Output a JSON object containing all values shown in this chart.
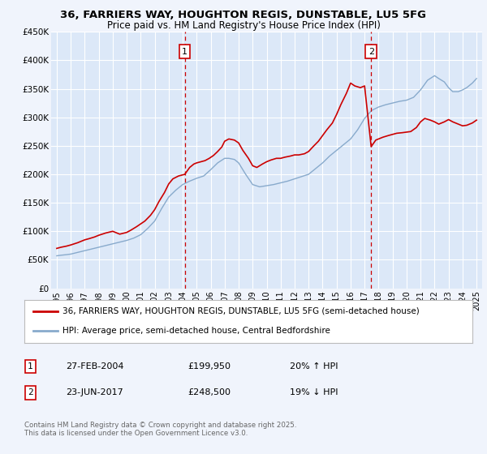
{
  "title_line1": "36, FARRIERS WAY, HOUGHTON REGIS, DUNSTABLE, LU5 5FG",
  "title_line2": "Price paid vs. HM Land Registry's House Price Index (HPI)",
  "background_color": "#f0f4fc",
  "plot_bg_color": "#dce8f8",
  "red_line_color": "#cc0000",
  "blue_line_color": "#88aacc",
  "grid_color": "#ffffff",
  "marker1_x": 2004.15,
  "marker1_y": 199950,
  "marker1_label": "1",
  "marker1_date": "27-FEB-2004",
  "marker1_price": "£199,950",
  "marker1_hpi": "20% ↑ HPI",
  "marker2_x": 2017.47,
  "marker2_y": 248500,
  "marker2_label": "2",
  "marker2_date": "23-JUN-2017",
  "marker2_price": "£248,500",
  "marker2_hpi": "19% ↓ HPI",
  "ylim_min": 0,
  "ylim_max": 450000,
  "xlim_min": 1994.6,
  "xlim_max": 2025.4,
  "yticks": [
    0,
    50000,
    100000,
    150000,
    200000,
    250000,
    300000,
    350000,
    400000,
    450000
  ],
  "ytick_labels": [
    "£0",
    "£50K",
    "£100K",
    "£150K",
    "£200K",
    "£250K",
    "£300K",
    "£350K",
    "£400K",
    "£450K"
  ],
  "xticks": [
    1995,
    1996,
    1997,
    1998,
    1999,
    2000,
    2001,
    2002,
    2003,
    2004,
    2005,
    2006,
    2007,
    2008,
    2009,
    2010,
    2011,
    2012,
    2013,
    2014,
    2015,
    2016,
    2017,
    2018,
    2019,
    2020,
    2021,
    2022,
    2023,
    2024,
    2025
  ],
  "legend_red_label": "36, FARRIERS WAY, HOUGHTON REGIS, DUNSTABLE, LU5 5FG (semi-detached house)",
  "legend_blue_label": "HPI: Average price, semi-detached house, Central Bedfordshire",
  "footnote": "Contains HM Land Registry data © Crown copyright and database right 2025.\nThis data is licensed under the Open Government Licence v3.0.",
  "red_x": [
    1995.0,
    1995.3,
    1995.7,
    1996.0,
    1996.5,
    1997.0,
    1997.3,
    1997.7,
    1998.0,
    1998.5,
    1999.0,
    1999.5,
    2000.0,
    2000.3,
    2000.7,
    2001.0,
    2001.3,
    2001.7,
    2002.0,
    2002.3,
    2002.7,
    2003.0,
    2003.3,
    2003.7,
    2004.15,
    2004.5,
    2004.8,
    2005.0,
    2005.3,
    2005.6,
    2005.9,
    2006.2,
    2006.5,
    2006.8,
    2007.0,
    2007.3,
    2007.7,
    2008.0,
    2008.3,
    2008.7,
    2009.0,
    2009.3,
    2009.7,
    2010.0,
    2010.3,
    2010.7,
    2011.0,
    2011.3,
    2011.7,
    2012.0,
    2012.3,
    2012.7,
    2013.0,
    2013.3,
    2013.7,
    2014.0,
    2014.3,
    2014.7,
    2015.0,
    2015.3,
    2015.7,
    2016.0,
    2016.3,
    2016.7,
    2017.0,
    2017.47,
    2017.8,
    2018.0,
    2018.3,
    2018.7,
    2019.0,
    2019.3,
    2019.7,
    2020.0,
    2020.3,
    2020.7,
    2021.0,
    2021.3,
    2021.7,
    2022.0,
    2022.3,
    2022.7,
    2023.0,
    2023.3,
    2023.7,
    2024.0,
    2024.3,
    2024.7,
    2025.0
  ],
  "red_y": [
    70000,
    72000,
    74000,
    76000,
    80000,
    85000,
    87000,
    90000,
    93000,
    97000,
    100000,
    95000,
    98000,
    102000,
    108000,
    113000,
    118000,
    128000,
    138000,
    152000,
    168000,
    183000,
    192000,
    197000,
    199950,
    212000,
    218000,
    220000,
    222000,
    224000,
    228000,
    233000,
    240000,
    248000,
    258000,
    262000,
    260000,
    255000,
    242000,
    228000,
    215000,
    212000,
    218000,
    222000,
    225000,
    228000,
    228000,
    230000,
    232000,
    234000,
    234000,
    236000,
    240000,
    248000,
    258000,
    268000,
    278000,
    290000,
    305000,
    322000,
    342000,
    360000,
    355000,
    352000,
    355000,
    248500,
    260000,
    262000,
    265000,
    268000,
    270000,
    272000,
    273000,
    274000,
    275000,
    282000,
    292000,
    298000,
    295000,
    292000,
    288000,
    292000,
    296000,
    292000,
    288000,
    285000,
    286000,
    290000,
    295000
  ],
  "blue_x": [
    1995.0,
    1995.3,
    1995.7,
    1996.0,
    1996.5,
    1997.0,
    1997.5,
    1998.0,
    1998.5,
    1999.0,
    1999.5,
    2000.0,
    2000.5,
    2001.0,
    2001.5,
    2002.0,
    2002.5,
    2003.0,
    2003.5,
    2004.0,
    2004.5,
    2005.0,
    2005.5,
    2006.0,
    2006.5,
    2007.0,
    2007.3,
    2007.7,
    2008.0,
    2008.5,
    2009.0,
    2009.5,
    2010.0,
    2010.5,
    2011.0,
    2011.5,
    2012.0,
    2012.5,
    2013.0,
    2013.5,
    2014.0,
    2014.5,
    2015.0,
    2015.5,
    2016.0,
    2016.5,
    2017.0,
    2017.5,
    2018.0,
    2018.5,
    2019.0,
    2019.5,
    2020.0,
    2020.5,
    2021.0,
    2021.5,
    2022.0,
    2022.3,
    2022.7,
    2023.0,
    2023.3,
    2023.7,
    2024.0,
    2024.3,
    2024.7,
    2025.0
  ],
  "blue_y": [
    57000,
    58000,
    59000,
    60000,
    63000,
    66000,
    69000,
    72000,
    75000,
    78000,
    81000,
    84000,
    88000,
    94000,
    105000,
    118000,
    140000,
    160000,
    172000,
    182000,
    188000,
    193000,
    197000,
    208000,
    220000,
    228000,
    228000,
    226000,
    220000,
    200000,
    182000,
    178000,
    180000,
    182000,
    185000,
    188000,
    192000,
    196000,
    200000,
    210000,
    220000,
    232000,
    242000,
    252000,
    262000,
    278000,
    298000,
    312000,
    318000,
    322000,
    325000,
    328000,
    330000,
    335000,
    348000,
    365000,
    373000,
    368000,
    362000,
    352000,
    345000,
    345000,
    348000,
    352000,
    360000,
    368000
  ]
}
